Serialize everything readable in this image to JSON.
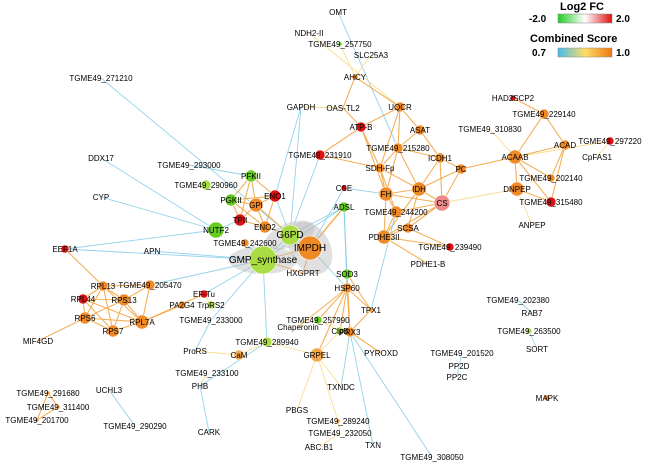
{
  "legend": {
    "log2fc": {
      "title": "Log2 FC",
      "min_label": "-2.0",
      "max_label": "2.0",
      "colors": [
        "#22cc22",
        "#ffffff",
        "#dd1111"
      ]
    },
    "combined_score": {
      "title": "Combined Score",
      "min_label": "0.7",
      "max_label": "1.0",
      "colors": [
        "#44bbee",
        "#ffdd66",
        "#ee7711"
      ]
    }
  },
  "colors": {
    "green": "#66cc22",
    "lightgreen": "#aadd44",
    "orange": "#f08a26",
    "lightorange": "#f6a84a",
    "red": "#dd1111",
    "darkred": "#cc2200",
    "pink": "#ef8888",
    "gray": "#bbbbbb"
  },
  "nodes": [
    {
      "id": "OMT",
      "label": "OMT"
    },
    {
      "id": "NDH2",
      "label": "NDH2-II"
    },
    {
      "id": "T257750",
      "label": "TGME49_257750"
    },
    {
      "id": "SLC25A3",
      "label": "SLC25A3"
    },
    {
      "id": "T271210",
      "label": "TGME49_271210"
    },
    {
      "id": "AHCY",
      "label": "AHCY"
    },
    {
      "id": "GAPDH",
      "label": "GAPDH"
    },
    {
      "id": "OASTL2",
      "label": "OAS-TL2"
    },
    {
      "id": "UQCR",
      "label": "UQCR"
    },
    {
      "id": "HAD2SCP2",
      "label": "HAD2SCP2"
    },
    {
      "id": "ATPB",
      "label": "ATP-B"
    },
    {
      "id": "ASAT",
      "label": "ASAT"
    },
    {
      "id": "T229140",
      "label": "TGME49_229140"
    },
    {
      "id": "T310830",
      "label": "TGME49_310830"
    },
    {
      "id": "T297220",
      "label": "TGME49_297220"
    },
    {
      "id": "DDX17",
      "label": "DDX17"
    },
    {
      "id": "T293000",
      "label": "TGME49_293000"
    },
    {
      "id": "T231910",
      "label": "TGME49_231910"
    },
    {
      "id": "T215280",
      "label": "TGME49_215280"
    },
    {
      "id": "ICDH1",
      "label": "ICDH1"
    },
    {
      "id": "ACAD",
      "label": "ACAD"
    },
    {
      "id": "ACAAB",
      "label": "ACAAB"
    },
    {
      "id": "CpFAS1",
      "label": "CpFAS1"
    },
    {
      "id": "PFKII",
      "label": "PFKII"
    },
    {
      "id": "SDHFp",
      "label": "SDH-Fp"
    },
    {
      "id": "PC",
      "label": "PC"
    },
    {
      "id": "T290960",
      "label": "TGME49_290960"
    },
    {
      "id": "CYP",
      "label": "CYP"
    },
    {
      "id": "PGKII",
      "label": "PGKII"
    },
    {
      "id": "ENO1",
      "label": "ENO1"
    },
    {
      "id": "CSE",
      "label": "CSE"
    },
    {
      "id": "FH",
      "label": "FH"
    },
    {
      "id": "IDH",
      "label": "IDH"
    },
    {
      "id": "DNPEP",
      "label": "DNPEP"
    },
    {
      "id": "T202140",
      "label": "TGME49_202140"
    },
    {
      "id": "GPI",
      "label": "GPI"
    },
    {
      "id": "TPII",
      "label": "TPII"
    },
    {
      "id": "ADSL",
      "label": "ADSL"
    },
    {
      "id": "CS",
      "label": "CS"
    },
    {
      "id": "T315480",
      "label": "TGME49_315480"
    },
    {
      "id": "NUTF2",
      "label": "NUTF2"
    },
    {
      "id": "ENO2",
      "label": "ENO2"
    },
    {
      "id": "G6PD",
      "label": "G6PD"
    },
    {
      "id": "T244200",
      "label": "TGME49_244200"
    },
    {
      "id": "ANPEP",
      "label": "ANPEP"
    },
    {
      "id": "EEF1A",
      "label": "EEF1A"
    },
    {
      "id": "APN",
      "label": "APN"
    },
    {
      "id": "T242600",
      "label": "TGME49_242600"
    },
    {
      "id": "IMPDH",
      "label": "IMPDH"
    },
    {
      "id": "PDHE3II",
      "label": "PDHE3II"
    },
    {
      "id": "SCSA",
      "label": "SCSA"
    },
    {
      "id": "T239490",
      "label": "TGME49_239490"
    },
    {
      "id": "GMPS",
      "label": "GMP_synthase"
    },
    {
      "id": "PDHE1B",
      "label": "PDHE1-B"
    },
    {
      "id": "HXGPRT",
      "label": "HXGPRT"
    },
    {
      "id": "SOD3",
      "label": "SOD3"
    },
    {
      "id": "RPL13",
      "label": "RPL13"
    },
    {
      "id": "T205470",
      "label": "TGME49_205470"
    },
    {
      "id": "EFTu",
      "label": "EF-Tu"
    },
    {
      "id": "HSP60",
      "label": "HSP60"
    },
    {
      "id": "RPL44",
      "label": "RPL44"
    },
    {
      "id": "RPS13",
      "label": "RPS13"
    },
    {
      "id": "PA2G4",
      "label": "PA2G4"
    },
    {
      "id": "TrpRS2",
      "label": "TrpRS2"
    },
    {
      "id": "T202380",
      "label": "TGME49_202380"
    },
    {
      "id": "TPX1",
      "label": "TPX1"
    },
    {
      "id": "RAB7",
      "label": "RAB7"
    },
    {
      "id": "RPS6",
      "label": "RPS6"
    },
    {
      "id": "RPL7A",
      "label": "RPL7A"
    },
    {
      "id": "T233000",
      "label": "TGME49_233000"
    },
    {
      "id": "Chaperonin",
      "label": "Chaperonin"
    },
    {
      "id": "RPS7",
      "label": "RPS7"
    },
    {
      "id": "T257990",
      "label": "TGME49_257990"
    },
    {
      "id": "T263500",
      "label": "TGME49_263500"
    },
    {
      "id": "MIF4GD",
      "label": "MIF4GD"
    },
    {
      "id": "ClpB",
      "label": "ClpB"
    },
    {
      "id": "PRX3",
      "label": "PRX3"
    },
    {
      "id": "T289940",
      "label": "TGME49_289940"
    },
    {
      "id": "SORT",
      "label": "SORT"
    },
    {
      "id": "ProRS",
      "label": "ProRS"
    },
    {
      "id": "CaM",
      "label": "CaM"
    },
    {
      "id": "GRPEL",
      "label": "GRPEL"
    },
    {
      "id": "PYROXD",
      "label": "PYROXD"
    },
    {
      "id": "T201520",
      "label": "TGME49_201520"
    },
    {
      "id": "PP2D",
      "label": "PP2D"
    },
    {
      "id": "PP2C",
      "label": "PP2C"
    },
    {
      "id": "T233100",
      "label": "TGME49_233100"
    },
    {
      "id": "PHB",
      "label": "PHB"
    },
    {
      "id": "TXNDC",
      "label": "TXNDC"
    },
    {
      "id": "UCHL3",
      "label": "UCHL3"
    },
    {
      "id": "T291680",
      "label": "TGME49_291680"
    },
    {
      "id": "T311400",
      "label": "TGME49_311400"
    },
    {
      "id": "MAPK",
      "label": "MAPK"
    },
    {
      "id": "T201700",
      "label": "TGME49_201700"
    },
    {
      "id": "T290290",
      "label": "TGME49_290290"
    },
    {
      "id": "CARK",
      "label": "CARK"
    },
    {
      "id": "PBGS",
      "label": "PBGS"
    },
    {
      "id": "T289240",
      "label": "TGME49_289240"
    },
    {
      "id": "T232050",
      "label": "TGME49_232050"
    },
    {
      "id": "ABCB1",
      "label": "ABC.B1"
    },
    {
      "id": "TXN",
      "label": "TXN"
    },
    {
      "id": "T308050",
      "label": "TGME49_308050"
    }
  ]
}
